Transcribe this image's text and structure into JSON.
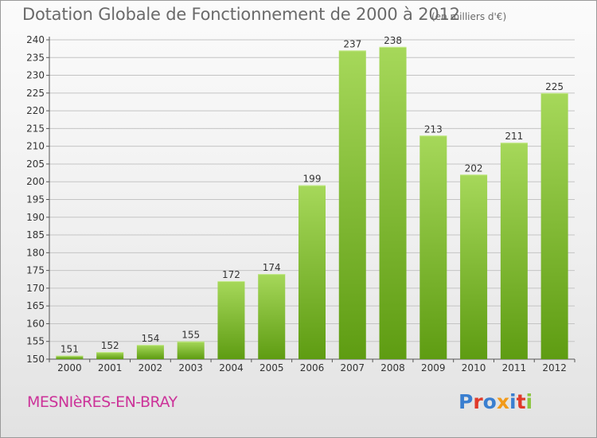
{
  "header": {
    "title": "Dotation Globale de Fonctionnement de 2000 à 2012",
    "subtitle": "(en milliers d'€)"
  },
  "footer": {
    "place": "MESNIèRES-EN-BRAY",
    "logo_text": "Proxiti"
  },
  "colors": {
    "bar_top": "#a6d85a",
    "bar_bottom": "#5e9c12",
    "place_text": "#cc3399",
    "logo_letters": [
      "#3a7fd0",
      "#e03a2a",
      "#3a7fd0",
      "#f29a1a",
      "#3a7fd0",
      "#e03a2a",
      "#8cc63f"
    ]
  },
  "chart_data": {
    "type": "bar",
    "title": "Dotation Globale de Fonctionnement de 2000 à 2012",
    "subtitle": "(en milliers d'€)",
    "xlabel": "",
    "ylabel": "",
    "categories": [
      "2000",
      "2001",
      "2002",
      "2003",
      "2004",
      "2005",
      "2006",
      "2007",
      "2008",
      "2009",
      "2010",
      "2011",
      "2012"
    ],
    "values": [
      151,
      152,
      154,
      155,
      172,
      174,
      199,
      237,
      238,
      213,
      202,
      211,
      225
    ],
    "ylim": [
      150,
      240
    ],
    "yticks": [
      150,
      155,
      160,
      165,
      170,
      175,
      180,
      185,
      190,
      195,
      200,
      205,
      210,
      215,
      220,
      225,
      230,
      235,
      240
    ],
    "grid": true,
    "data_labels": true
  }
}
